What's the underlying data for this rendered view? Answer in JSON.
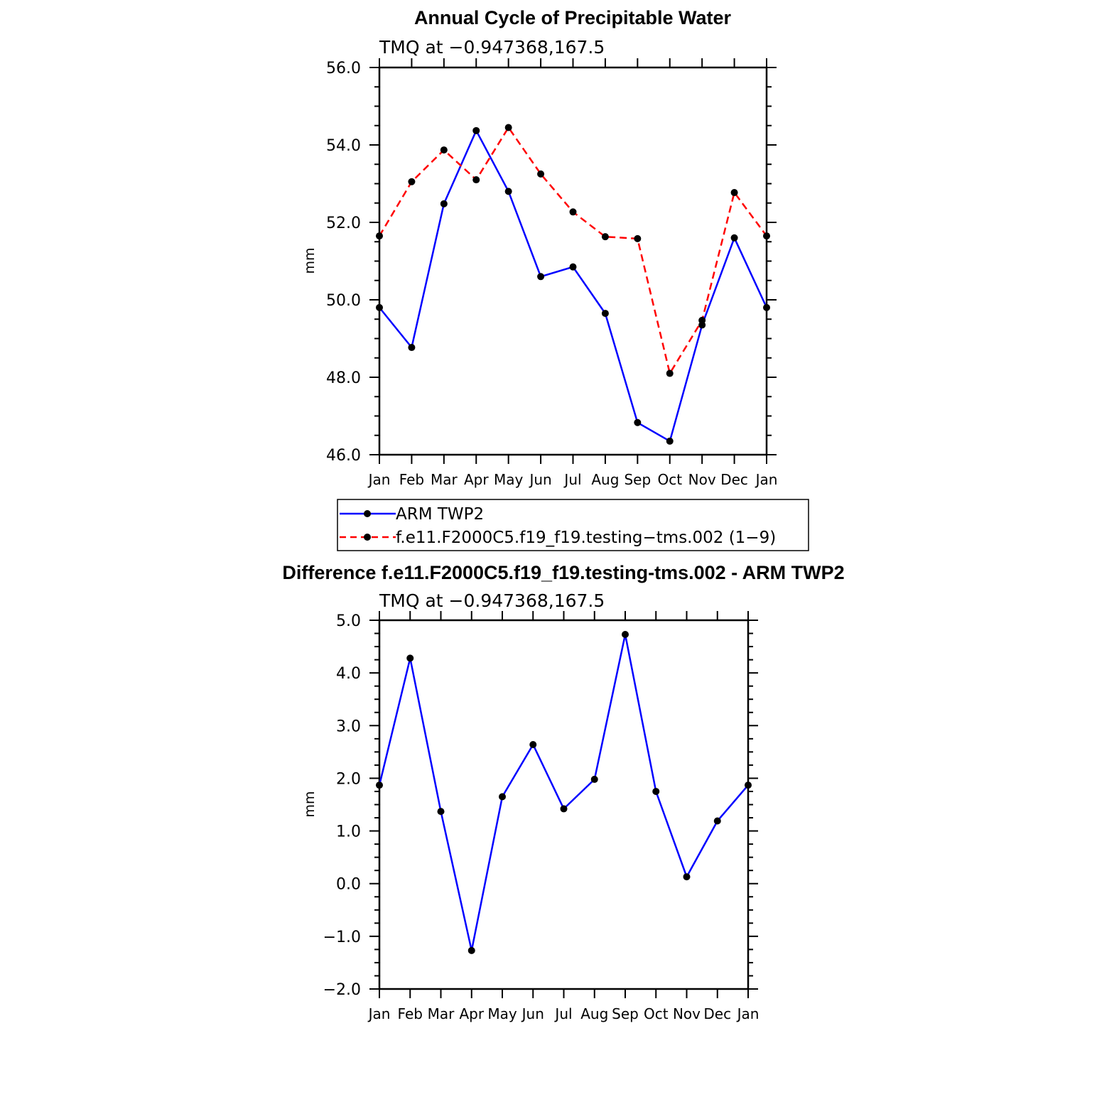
{
  "colors": {
    "obs": "#0000ff",
    "model": "#ff0000",
    "marker": "#000000"
  },
  "chart_data": [
    {
      "type": "line",
      "title": "Annual Cycle of Precipitable Water",
      "subtitle": "TMQ at −0.947368,167.5",
      "ylabel": "mm",
      "ylim": [
        46.0,
        56.0
      ],
      "yticks": [
        "46.0",
        "48.0",
        "50.0",
        "52.0",
        "54.0",
        "56.0"
      ],
      "categories": [
        "Jan",
        "Feb",
        "Mar",
        "Apr",
        "May",
        "Jun",
        "Jul",
        "Aug",
        "Sep",
        "Oct",
        "Nov",
        "Dec",
        "Jan"
      ],
      "series": [
        {
          "name": "ARM TWP2",
          "style": "solid",
          "color": "#0000ff",
          "values": [
            49.8,
            48.77,
            52.48,
            54.37,
            52.8,
            50.6,
            50.85,
            49.65,
            46.83,
            46.35,
            49.35,
            51.6,
            49.8
          ]
        },
        {
          "name": "f.e11.F2000C5.f19_f19.testing−tms.002 (1−9)",
          "style": "dashed",
          "color": "#ff0000",
          "values": [
            51.65,
            53.05,
            53.87,
            53.1,
            54.45,
            53.25,
            52.27,
            51.63,
            51.58,
            48.1,
            49.47,
            52.77,
            51.65
          ]
        }
      ],
      "legend": "below"
    },
    {
      "type": "line",
      "title": "Difference f.e11.F2000C5.f19_f19.testing-tms.002 - ARM TWP2",
      "subtitle": "TMQ at −0.947368,167.5",
      "ylabel": "mm",
      "ylim": [
        -2.0,
        5.0
      ],
      "yticks": [
        "−2.0",
        "−1.0",
        "0.0",
        "1.0",
        "2.0",
        "3.0",
        "4.0",
        "5.0"
      ],
      "categories": [
        "Jan",
        "Feb",
        "Mar",
        "Apr",
        "May",
        "Jun",
        "Jul",
        "Aug",
        "Sep",
        "Oct",
        "Nov",
        "Dec",
        "Jan"
      ],
      "series": [
        {
          "style": "solid",
          "color": "#0000ff",
          "values": [
            1.87,
            4.28,
            1.37,
            -1.27,
            1.65,
            2.64,
            1.42,
            1.98,
            4.73,
            1.75,
            0.13,
            1.19,
            1.87
          ]
        }
      ]
    }
  ]
}
